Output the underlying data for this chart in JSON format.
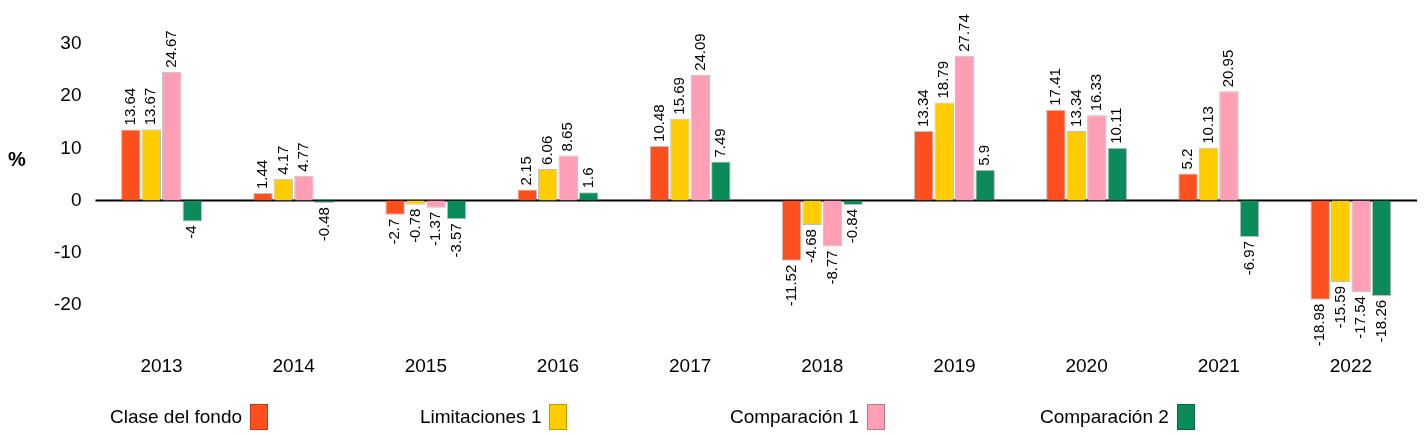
{
  "chart_data": {
    "type": "bar",
    "ylabel": "%",
    "categories": [
      "2013",
      "2014",
      "2015",
      "2016",
      "2017",
      "2018",
      "2019",
      "2020",
      "2021",
      "2022"
    ],
    "series": [
      {
        "name": "Clase del fondo",
        "color": "#ff4f1f",
        "values": [
          13.64,
          1.44,
          -2.7,
          2.15,
          10.48,
          -11.52,
          13.34,
          17.41,
          5.2,
          -18.98
        ]
      },
      {
        "name": "Limitaciones 1",
        "color": "#ffcc00",
        "values": [
          13.67,
          4.17,
          -0.78,
          6.06,
          15.69,
          -4.68,
          18.79,
          13.34,
          10.13,
          -15.59
        ]
      },
      {
        "name": "Comparación 1",
        "color": "#ff9fb5",
        "values": [
          24.67,
          4.77,
          -1.37,
          8.65,
          24.09,
          -8.77,
          27.74,
          16.33,
          20.95,
          -17.54
        ]
      },
      {
        "name": "Comparación 2",
        "color": "#0b8a5a",
        "values": [
          -4,
          -0.48,
          -3.57,
          1.6,
          7.49,
          -0.84,
          5.9,
          10.11,
          -6.97,
          -18.26
        ]
      }
    ],
    "ylim": [
      -20,
      30
    ],
    "yticks": [
      -20,
      -10,
      0,
      10,
      20,
      30
    ],
    "ref_lines": [
      {
        "axis": "y",
        "value": 0,
        "color": "#000000"
      }
    ],
    "grid": false,
    "legend": "bottom",
    "data_labels": true
  }
}
